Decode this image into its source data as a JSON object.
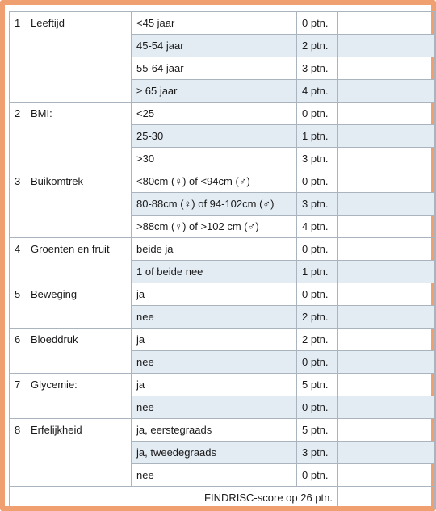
{
  "categories": [
    {
      "num": "1",
      "label": "Leeftijd",
      "options": [
        {
          "text": "<45 jaar",
          "points": "0 ptn."
        },
        {
          "text": "45-54 jaar",
          "points": "2 ptn."
        },
        {
          "text": "55-64 jaar",
          "points": "3 ptn."
        },
        {
          "text": "≥ 65 jaar",
          "points": "4 ptn."
        }
      ]
    },
    {
      "num": "2",
      "label": "BMI:",
      "options": [
        {
          "text": "<25",
          "points": "0 ptn."
        },
        {
          "text": "25-30",
          "points": "1 ptn."
        },
        {
          "text": ">30",
          "points": "3 ptn."
        }
      ]
    },
    {
      "num": "3",
      "label": "Buikomtrek",
      "options": [
        {
          "text": "<80cm (♀) of <94cm (♂)",
          "points": "0 ptn."
        },
        {
          "text": "80-88cm (♀) of 94-102cm (♂)",
          "points": "3 ptn."
        },
        {
          "text": ">88cm (♀) of >102 cm (♂)",
          "points": "4 ptn."
        }
      ]
    },
    {
      "num": "4",
      "label": "Groenten en fruit",
      "options": [
        {
          "text": "beide ja",
          "points": "0 ptn."
        },
        {
          "text": "1 of beide nee",
          "points": "1 ptn."
        }
      ]
    },
    {
      "num": "5",
      "label": "Beweging",
      "options": [
        {
          "text": "ja",
          "points": "0 ptn."
        },
        {
          "text": "nee",
          "points": "2 ptn."
        }
      ]
    },
    {
      "num": "6",
      "label": "Bloeddruk",
      "options": [
        {
          "text": "ja",
          "points": "2 ptn."
        },
        {
          "text": "nee",
          "points": "0 ptn."
        }
      ]
    },
    {
      "num": "7",
      "label": "Glycemie:",
      "options": [
        {
          "text": "ja",
          "points": "5 ptn."
        },
        {
          "text": "nee",
          "points": "0 ptn."
        }
      ]
    },
    {
      "num": "8",
      "label": "Erfelijkheid",
      "options": [
        {
          "text": "ja, eerstegraads",
          "points": "5 ptn."
        },
        {
          "text": "ja, tweedegraads",
          "points": "3 ptn."
        },
        {
          "text": "nee",
          "points": "0 ptn."
        }
      ]
    }
  ],
  "footer": {
    "text": "FINDRISC-score op 26 ptn."
  },
  "colors": {
    "border": "#f0a070",
    "shade": "#e3ebf3",
    "grid": "#a9b4bf"
  }
}
